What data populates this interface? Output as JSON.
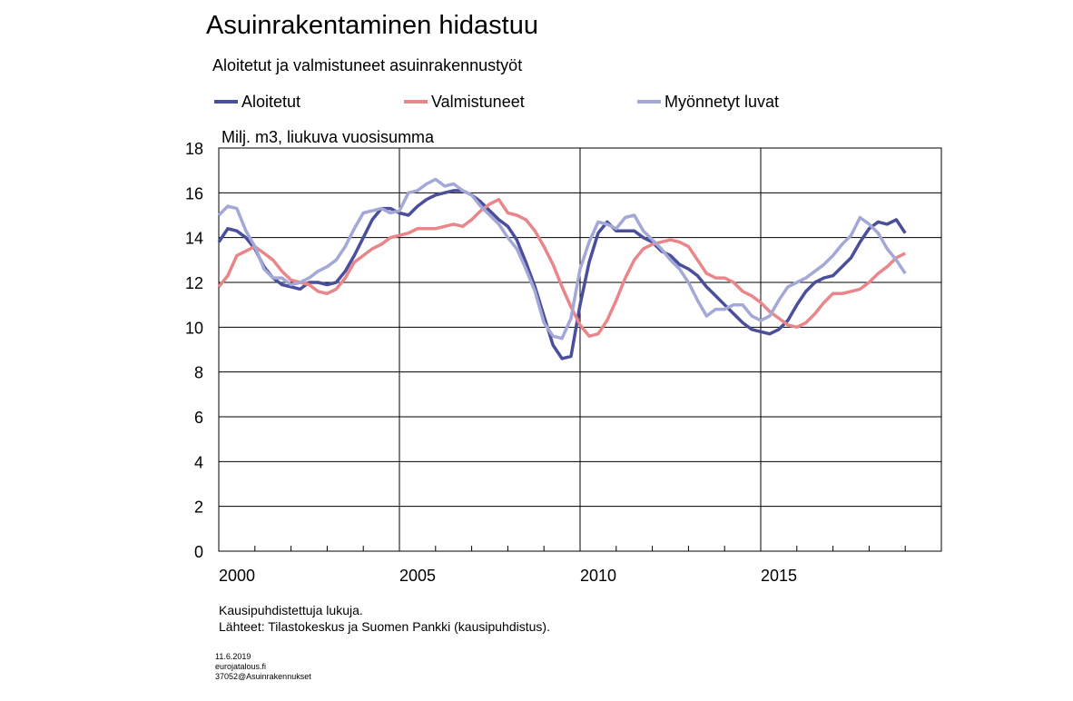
{
  "chart_data": {
    "type": "line",
    "title": "Asuinrakentaminen hidastuu",
    "subtitle": "Aloitetut ja valmistuneet asuinrakennustyöt",
    "y_axis_label": "Milj. m3, liukuva vuosisumma",
    "notes": [
      "Kausipuhdistettuja lukuja.",
      "Lähteet: Tilastokeskus ja Suomen Pankki (kausipuhdistus)."
    ],
    "footer": [
      "11.6.2019",
      "eurojatalous.fi",
      "37052@Asuinrakennukset"
    ],
    "xlim": [
      2000,
      2020
    ],
    "xticks": [
      2000,
      2005,
      2010,
      2015
    ],
    "x_gridlines": [
      2005,
      2010,
      2015
    ],
    "x_minor_ticks": [
      2001,
      2002,
      2003,
      2004,
      2006,
      2007,
      2008,
      2009,
      2011,
      2012,
      2013,
      2014,
      2016,
      2017,
      2018,
      2019
    ],
    "ylim": [
      0,
      18
    ],
    "yticks": [
      0,
      2,
      4,
      6,
      8,
      10,
      12,
      14,
      16,
      18
    ],
    "grid": true,
    "x": [
      2000,
      2000.25,
      2000.5,
      2000.75,
      2001,
      2001.25,
      2001.5,
      2001.75,
      2002,
      2002.25,
      2002.5,
      2002.75,
      2003,
      2003.25,
      2003.5,
      2003.75,
      2004,
      2004.25,
      2004.5,
      2004.75,
      2005,
      2005.25,
      2005.5,
      2005.75,
      2006,
      2006.25,
      2006.5,
      2006.75,
      2007,
      2007.25,
      2007.5,
      2007.75,
      2008,
      2008.25,
      2008.5,
      2008.75,
      2009,
      2009.25,
      2009.5,
      2009.75,
      2010,
      2010.25,
      2010.5,
      2010.75,
      2011,
      2011.25,
      2011.5,
      2011.75,
      2012,
      2012.25,
      2012.5,
      2012.75,
      2013,
      2013.25,
      2013.5,
      2013.75,
      2014,
      2014.25,
      2014.5,
      2014.75,
      2015,
      2015.25,
      2015.5,
      2015.75,
      2016,
      2016.25,
      2016.5,
      2016.75,
      2017,
      2017.25,
      2017.5,
      2017.75,
      2018,
      2018.25,
      2018.5,
      2018.75,
      2019
    ],
    "series": [
      {
        "name": "Aloitetut",
        "color": "#4a4f9c",
        "values": [
          13.8,
          14.4,
          14.3,
          14.0,
          13.5,
          12.7,
          12.2,
          11.9,
          11.8,
          11.7,
          12.0,
          12.0,
          11.9,
          12.0,
          12.5,
          13.2,
          14.0,
          14.8,
          15.3,
          15.3,
          15.1,
          15.0,
          15.4,
          15.7,
          15.9,
          16.0,
          16.1,
          16.1,
          15.9,
          15.6,
          15.2,
          14.8,
          14.5,
          13.9,
          12.9,
          11.8,
          10.5,
          9.2,
          8.6,
          8.7,
          11.0,
          12.9,
          14.2,
          14.7,
          14.3,
          14.3,
          14.3,
          14.0,
          13.8,
          13.4,
          13.2,
          12.8,
          12.6,
          12.3,
          11.8,
          11.4,
          11.0,
          10.6,
          10.2,
          9.9,
          9.8,
          9.7,
          9.9,
          10.3,
          11.0,
          11.6,
          12.0,
          12.2,
          12.3,
          12.7,
          13.1,
          13.8,
          14.4,
          14.7,
          14.6,
          14.8,
          14.2
        ]
      },
      {
        "name": "Valmistuneet",
        "color": "#e8868a",
        "values": [
          11.8,
          12.3,
          13.2,
          13.4,
          13.6,
          13.3,
          13.0,
          12.5,
          12.1,
          12.0,
          11.9,
          11.6,
          11.5,
          11.7,
          12.2,
          12.9,
          13.2,
          13.5,
          13.7,
          14.0,
          14.1,
          14.2,
          14.4,
          14.4,
          14.4,
          14.5,
          14.6,
          14.5,
          14.8,
          15.2,
          15.5,
          15.7,
          15.1,
          15.0,
          14.8,
          14.3,
          13.6,
          12.8,
          11.8,
          10.9,
          10.1,
          9.6,
          9.7,
          10.3,
          11.2,
          12.2,
          13.0,
          13.5,
          13.7,
          13.8,
          13.9,
          13.8,
          13.6,
          13.0,
          12.4,
          12.2,
          12.2,
          12.0,
          11.6,
          11.4,
          11.1,
          10.7,
          10.4,
          10.1,
          10.0,
          10.2,
          10.6,
          11.1,
          11.5,
          11.5,
          11.6,
          11.7,
          12.0,
          12.4,
          12.7,
          13.1,
          13.3
        ]
      },
      {
        "name": "Myönnetyt luvat",
        "color": "#a3a8d6",
        "values": [
          15.0,
          15.4,
          15.3,
          14.3,
          13.6,
          12.6,
          12.2,
          12.2,
          11.9,
          12.0,
          12.2,
          12.5,
          12.7,
          13.0,
          13.6,
          14.4,
          15.1,
          15.2,
          15.3,
          15.1,
          15.2,
          16.0,
          16.1,
          16.4,
          16.6,
          16.3,
          16.4,
          16.1,
          15.9,
          15.4,
          15.0,
          14.6,
          14.0,
          13.5,
          12.6,
          11.6,
          10.2,
          9.6,
          9.5,
          10.4,
          12.6,
          13.8,
          14.7,
          14.6,
          14.4,
          14.9,
          15.0,
          14.3,
          13.9,
          13.5,
          13.0,
          12.6,
          12.0,
          11.2,
          10.5,
          10.8,
          10.8,
          11.0,
          11.0,
          10.5,
          10.3,
          10.5,
          11.2,
          11.8,
          12.0,
          12.2,
          12.5,
          12.8,
          13.2,
          13.7,
          14.1,
          14.9,
          14.6,
          14.2,
          13.5,
          13.0,
          12.4
        ]
      }
    ]
  }
}
